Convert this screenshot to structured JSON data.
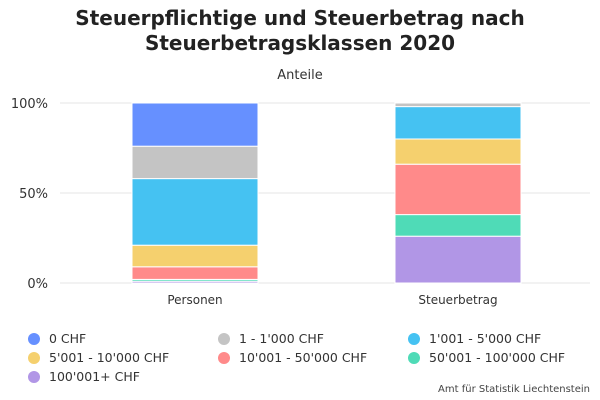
{
  "chart_data": {
    "type": "bar",
    "stacked": true,
    "percent": true,
    "title": "Steuerpflichtige und Steuerbetrag nach Steuerbetragsklassen 2020",
    "subtitle": "Anteile",
    "categories": [
      "Personen",
      "Steuerbetrag"
    ],
    "ylim": [
      0,
      100
    ],
    "yticks": [
      "0%",
      "50%",
      "100%"
    ],
    "grid": true,
    "legend_position": "bottom",
    "series": [
      {
        "name": "0 CHF",
        "color": "#6690ff",
        "values": [
          24,
          0
        ]
      },
      {
        "name": "1 - 1'000 CHF",
        "color": "#c4c4c4",
        "values": [
          18,
          2
        ]
      },
      {
        "name": "1'001 - 5'000 CHF",
        "color": "#45c2f2",
        "values": [
          37,
          18
        ]
      },
      {
        "name": "5'001 - 10'000 CHF",
        "color": "#f5d06e",
        "values": [
          12,
          14
        ]
      },
      {
        "name": "10'001 - 50'000 CHF",
        "color": "#ff8a8a",
        "values": [
          7,
          28
        ]
      },
      {
        "name": "50'001 - 100'000 CHF",
        "color": "#4fdbb7",
        "values": [
          1,
          12
        ]
      },
      {
        "name": "100'001+ CHF",
        "color": "#b196e6",
        "values": [
          1,
          26
        ]
      }
    ]
  },
  "title_lines": [
    "Steuerpflichtige und Steuerbetrag nach",
    "Steuerbetragsklassen 2020"
  ],
  "source": "Amt für Statistik Liechtenstein"
}
